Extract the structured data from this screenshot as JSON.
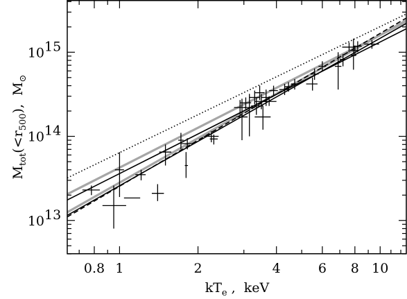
{
  "chart_data": {
    "type": "scatter",
    "xscale": "log",
    "yscale": "log",
    "xlim": [
      0.63,
      12.6
    ],
    "ylim": [
      4000000000000.0,
      4100000000000000.0
    ],
    "xlabel": {
      "main": "kT",
      "sub": "e",
      "rest": " ,  keV"
    },
    "ylabel": {
      "m": "M",
      "msub": "tot",
      "open": "(<r",
      "rsub": "500",
      "close": "),  M",
      "sun": "⊙"
    },
    "x_ticks": [
      {
        "value": 0.8,
        "label": "0.8"
      },
      {
        "value": 1,
        "label": "1"
      },
      {
        "value": 2,
        "label": "2"
      },
      {
        "value": 4,
        "label": "4"
      },
      {
        "value": 6,
        "label": "6"
      },
      {
        "value": 8,
        "label": "8"
      },
      {
        "value": 10,
        "label": "10"
      }
    ],
    "y_ticks": [
      {
        "value": 10000000000000.0,
        "base": "10",
        "exp": "13"
      },
      {
        "value": 100000000000000.0,
        "base": "10",
        "exp": "14"
      },
      {
        "value": 1000000000000000.0,
        "base": "10",
        "exp": "15"
      }
    ],
    "grid": false,
    "legend": "none",
    "points": [
      {
        "x": 0.78,
        "y": 23000000000000.0,
        "xlo": 0.72,
        "xhi": 0.84,
        "ylo": 20000000000000.0,
        "yhi": 26000000000000.0
      },
      {
        "x": 0.95,
        "y": 15000000000000.0,
        "xlo": 0.86,
        "xhi": 1.06,
        "ylo": 8000000000000.0,
        "yhi": 26000000000000.0
      },
      {
        "x": 1.0,
        "y": 40000000000000.0,
        "xlo": 0.96,
        "xhi": 1.04,
        "ylo": 19000000000000.0,
        "yhi": 65000000000000.0
      },
      {
        "x": 1.12,
        "y": 18500000000000.0,
        "xlo": 1.04,
        "xhi": 1.2,
        "ylo": 18500000000000.0,
        "yhi": 18500000000000.0
      },
      {
        "x": 1.21,
        "y": 35000000000000.0,
        "xlo": 1.15,
        "xhi": 1.26,
        "ylo": 30000000000000.0,
        "yhi": 40000000000000.0
      },
      {
        "x": 1.4,
        "y": 21000000000000.0,
        "xlo": 1.33,
        "xhi": 1.48,
        "ylo": 17000000000000.0,
        "yhi": 27000000000000.0
      },
      {
        "x": 1.5,
        "y": 65000000000000.0,
        "xlo": 1.42,
        "xhi": 1.58,
        "ylo": 45000000000000.0,
        "yhi": 80000000000000.0
      },
      {
        "x": 1.72,
        "y": 90000000000000.0,
        "xlo": 1.68,
        "xhi": 1.76,
        "ylo": 70000000000000.0,
        "yhi": 110000000000000.0
      },
      {
        "x": 1.8,
        "y": 45000000000000.0,
        "xlo": 1.78,
        "xhi": 1.83,
        "ylo": 32000000000000.0,
        "yhi": 65000000000000.0
      },
      {
        "x": 1.82,
        "y": 82000000000000.0,
        "xlo": 1.72,
        "xhi": 1.92,
        "ylo": 70000000000000.0,
        "yhi": 95000000000000.0
      },
      {
        "x": 2.25,
        "y": 100000000000000.0,
        "xlo": 2.1,
        "xhi": 2.4,
        "ylo": 85000000000000.0,
        "yhi": 115000000000000.0
      },
      {
        "x": 2.3,
        "y": 93000000000000.0,
        "xlo": 2.22,
        "xhi": 2.38,
        "ylo": 80000000000000.0,
        "yhi": 105000000000000.0
      },
      {
        "x": 2.9,
        "y": 220000000000000.0,
        "xlo": 2.75,
        "xhi": 3.05,
        "ylo": 180000000000000.0,
        "yhi": 270000000000000.0
      },
      {
        "x": 2.95,
        "y": 170000000000000.0,
        "xlo": 2.8,
        "xhi": 3.1,
        "ylo": 90000000000000.0,
        "yhi": 280000000000000.0
      },
      {
        "x": 3.05,
        "y": 250000000000000.0,
        "xlo": 2.9,
        "xhi": 3.2,
        "ylo": 210000000000000.0,
        "yhi": 290000000000000.0
      },
      {
        "x": 3.15,
        "y": 220000000000000.0,
        "xlo": 3.0,
        "xhi": 3.3,
        "ylo": 100000000000000.0,
        "yhi": 320000000000000.0
      },
      {
        "x": 3.3,
        "y": 290000000000000.0,
        "xlo": 3.15,
        "xhi": 3.45,
        "ylo": 240000000000000.0,
        "yhi": 350000000000000.0
      },
      {
        "x": 3.35,
        "y": 230000000000000.0,
        "xlo": 3.2,
        "xhi": 3.55,
        "ylo": 180000000000000.0,
        "yhi": 290000000000000.0
      },
      {
        "x": 3.45,
        "y": 330000000000000.0,
        "xlo": 3.3,
        "xhi": 3.6,
        "ylo": 270000000000000.0,
        "yhi": 400000000000000.0
      },
      {
        "x": 3.5,
        "y": 260000000000000.0,
        "xlo": 3.3,
        "xhi": 3.75,
        "ylo": 210000000000000.0,
        "yhi": 320000000000000.0
      },
      {
        "x": 3.55,
        "y": 170000000000000.0,
        "xlo": 3.3,
        "xhi": 3.8,
        "ylo": 120000000000000.0,
        "yhi": 230000000000000.0
      },
      {
        "x": 3.65,
        "y": 290000000000000.0,
        "xlo": 3.5,
        "xhi": 3.8,
        "ylo": 230000000000000.0,
        "yhi": 360000000000000.0
      },
      {
        "x": 3.75,
        "y": 260000000000000.0,
        "xlo": 3.5,
        "xhi": 4.0,
        "ylo": 230000000000000.0,
        "yhi": 300000000000000.0
      },
      {
        "x": 3.9,
        "y": 350000000000000.0,
        "xlo": 3.75,
        "xhi": 4.05,
        "ylo": 300000000000000.0,
        "yhi": 400000000000000.0
      },
      {
        "x": 4.3,
        "y": 360000000000000.0,
        "xlo": 4.1,
        "xhi": 4.5,
        "ylo": 310000000000000.0,
        "yhi": 420000000000000.0
      },
      {
        "x": 4.45,
        "y": 390000000000000.0,
        "xlo": 4.3,
        "xhi": 4.6,
        "ylo": 340000000000000.0,
        "yhi": 440000000000000.0
      },
      {
        "x": 4.7,
        "y": 420000000000000.0,
        "xlo": 4.55,
        "xhi": 4.85,
        "ylo": 360000000000000.0,
        "yhi": 480000000000000.0
      },
      {
        "x": 5.5,
        "y": 420000000000000.0,
        "xlo": 5.2,
        "xhi": 5.75,
        "ylo": 350000000000000.0,
        "yhi": 500000000000000.0
      },
      {
        "x": 5.6,
        "y": 550000000000000.0,
        "xlo": 5.4,
        "xhi": 5.8,
        "ylo": 470000000000000.0,
        "yhi": 640000000000000.0
      },
      {
        "x": 6.0,
        "y": 680000000000000.0,
        "xlo": 5.8,
        "xhi": 6.2,
        "ylo": 590000000000000.0,
        "yhi": 780000000000000.0
      },
      {
        "x": 6.9,
        "y": 680000000000000.0,
        "xlo": 6.7,
        "xhi": 7.1,
        "ylo": 360000000000000.0,
        "yhi": 1000000000000000.0
      },
      {
        "x": 7.2,
        "y": 820000000000000.0,
        "xlo": 7.0,
        "xhi": 7.4,
        "ylo": 680000000000000.0,
        "yhi": 950000000000000.0
      },
      {
        "x": 7.6,
        "y": 1150000000000000.0,
        "xlo": 7.15,
        "xhi": 8.05,
        "ylo": 1000000000000000.0,
        "yhi": 1300000000000000.0
      },
      {
        "x": 7.9,
        "y": 920000000000000.0,
        "xlo": 7.7,
        "xhi": 8.1,
        "ylo": 620000000000000.0,
        "yhi": 1450000000000000.0
      },
      {
        "x": 8.0,
        "y": 1050000000000000.0,
        "xlo": 7.8,
        "xhi": 8.2,
        "ylo": 900000000000000.0,
        "yhi": 1200000000000000.0
      },
      {
        "x": 8.2,
        "y": 1180000000000000.0,
        "xlo": 7.9,
        "xhi": 8.5,
        "ylo": 1000000000000000.0,
        "yhi": 1350000000000000.0
      },
      {
        "x": 9.3,
        "y": 1250000000000000.0,
        "xlo": 8.7,
        "xhi": 9.9,
        "ylo": 1100000000000000.0,
        "yhi": 1400000000000000.0
      }
    ],
    "lines": [
      {
        "style": "dotted",
        "color": "#000000",
        "from": [
          0.63,
          32000000000000.0
        ],
        "to": [
          12.6,
          2850000000000000.0
        ]
      },
      {
        "style": "solid-thick",
        "color": "#a6a6a6",
        "from": [
          0.63,
          20500000000000.0
        ],
        "to": [
          12.6,
          2300000000000000.0
        ]
      },
      {
        "style": "solid-thick",
        "color": "#a6a6a6",
        "from": [
          0.63,
          12500000000000.0
        ],
        "to": [
          12.6,
          2400000000000000.0
        ]
      },
      {
        "style": "solid",
        "color": "#000000",
        "from": [
          0.63,
          17500000000000.0
        ],
        "to": [
          12.6,
          1900000000000000.0
        ]
      },
      {
        "style": "solid",
        "color": "#000000",
        "from": [
          0.63,
          11500000000000.0
        ],
        "to": [
          12.6,
          2200000000000000.0
        ]
      },
      {
        "style": "dashed",
        "color": "#000000",
        "from": [
          0.63,
          11000000000000.0
        ],
        "to": [
          12.6,
          2550000000000000.0
        ]
      }
    ]
  }
}
